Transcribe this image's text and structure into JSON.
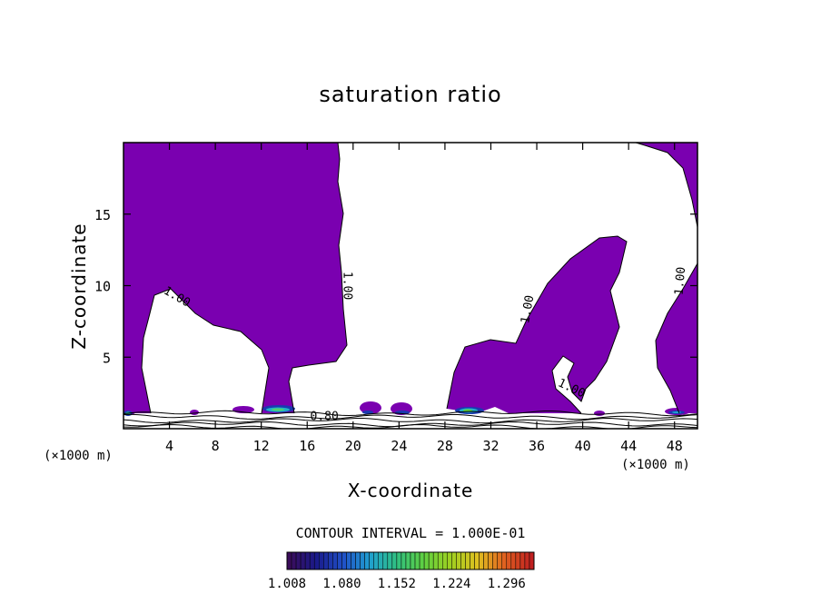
{
  "chart_data": {
    "type": "heatmap",
    "title": "saturation ratio",
    "xlabel": "X-coordinate",
    "ylabel": "Z-coordinate",
    "x_unit_left": "(×1000 m)",
    "x_unit_right": "(×1000 m)",
    "xlim": [
      0,
      50
    ],
    "ylim": [
      0,
      20
    ],
    "x_ticks": [
      4,
      8,
      12,
      16,
      20,
      24,
      28,
      32,
      36,
      40,
      44,
      48
    ],
    "y_ticks": [
      5,
      10,
      15
    ],
    "grid": false,
    "contour_labels": [
      {
        "text": "1.00",
        "x": 4.5,
        "y": 9.0
      },
      {
        "text": "1.00",
        "x": 19.2,
        "y": 10.0
      },
      {
        "text": "1.00",
        "x": 35.5,
        "y": 8.3
      },
      {
        "text": "1.00",
        "x": 38.9,
        "y": 2.6
      },
      {
        "text": "1.00",
        "x": 48.8,
        "y": 10.3
      },
      {
        "text": "0.80",
        "x": 17.5,
        "y": 0.6
      }
    ],
    "contour_interval_text": "CONTOUR INTERVAL = 1.000E-01",
    "colorbar": {
      "min": 1.008,
      "max": 1.332,
      "ticks": [
        "1.008",
        "1.080",
        "1.152",
        "1.224",
        "1.296"
      ],
      "colors": [
        "#3a0d5a",
        "#1a1a8a",
        "#2050c8",
        "#20a0d0",
        "#30c080",
        "#60d040",
        "#a0d020",
        "#e0c020",
        "#e06020",
        "#c02020"
      ]
    },
    "fill_color": "#7a00b0"
  }
}
